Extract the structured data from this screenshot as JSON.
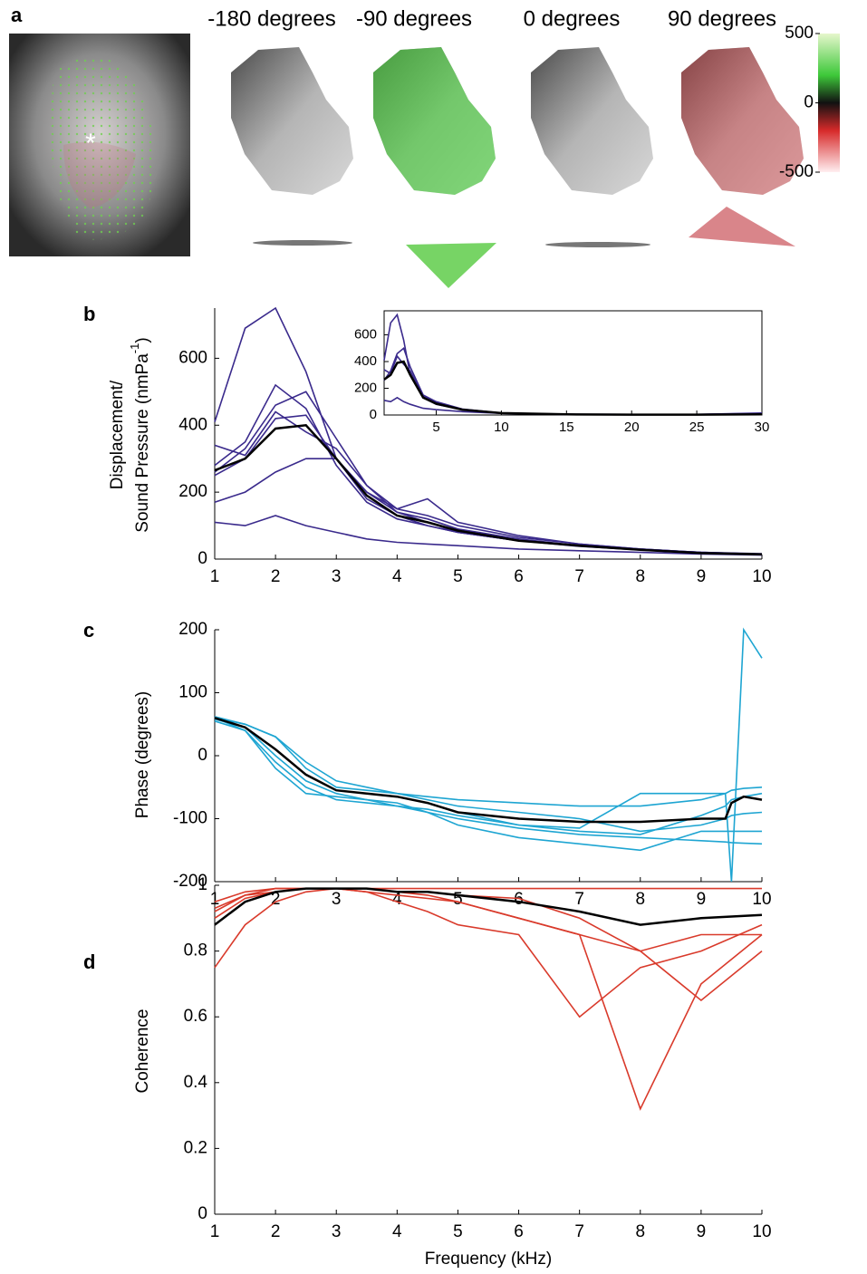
{
  "panel_a": {
    "label": "a",
    "marker": "*",
    "views": [
      "-180 degrees",
      "-90 degrees",
      "0 degrees",
      "90 degrees"
    ],
    "colorbar": {
      "lim": [
        -500,
        500
      ],
      "ticks": [
        500,
        0,
        -500
      ]
    }
  },
  "chart_data": [
    {
      "type": "line",
      "panel_label": "b",
      "y_label": [
        "Displacement/",
        "Sound Pressure (nmPa",
        "-1",
        ")"
      ],
      "x": [
        1,
        1.5,
        2,
        2.5,
        3,
        3.5,
        4,
        4.5,
        5,
        6,
        7,
        8,
        9,
        10
      ],
      "xlim": [
        1,
        10
      ],
      "xticks": [
        1,
        2,
        3,
        4,
        5,
        6,
        7,
        8,
        9,
        10
      ],
      "ylim": [
        0,
        750
      ],
      "yticks": [
        0,
        200,
        400,
        600
      ],
      "series": [
        {
          "color": "#3a2a8c",
          "values": [
            410,
            690,
            750,
            560,
            300,
            180,
            130,
            100,
            80,
            55,
            40,
            30,
            20,
            15
          ]
        },
        {
          "color": "#3a2a8c",
          "values": [
            340,
            310,
            440,
            380,
            330,
            220,
            140,
            120,
            90,
            60,
            40,
            28,
            18,
            14
          ]
        },
        {
          "color": "#3a2a8c",
          "values": [
            260,
            330,
            460,
            500,
            360,
            220,
            150,
            130,
            100,
            65,
            45,
            30,
            20,
            15
          ]
        },
        {
          "color": "#3a2a8c",
          "values": [
            250,
            300,
            420,
            430,
            300,
            200,
            150,
            180,
            110,
            70,
            45,
            30,
            20,
            16
          ]
        },
        {
          "color": "#3a2a8c",
          "values": [
            170,
            200,
            260,
            300,
            300,
            200,
            140,
            110,
            80,
            55,
            40,
            28,
            18,
            13
          ]
        },
        {
          "color": "#3a2a8c",
          "values": [
            110,
            100,
            130,
            100,
            80,
            60,
            50,
            45,
            40,
            30,
            25,
            20,
            15,
            12
          ]
        },
        {
          "color": "#3a2a8c",
          "values": [
            280,
            350,
            520,
            450,
            280,
            170,
            120,
            100,
            80,
            55,
            38,
            27,
            18,
            14
          ]
        },
        {
          "color": "#000000",
          "values": [
            265,
            300,
            390,
            400,
            300,
            190,
            130,
            110,
            85,
            55,
            40,
            28,
            18,
            14
          ]
        }
      ]
    },
    {
      "type": "line",
      "inset": true,
      "x": [
        1,
        1.5,
        2,
        2.5,
        3,
        4,
        5,
        7,
        10,
        15,
        20,
        25,
        30
      ],
      "xlim": [
        1,
        30
      ],
      "xticks": [
        5,
        10,
        15,
        20,
        25,
        30
      ],
      "ylim": [
        0,
        780
      ],
      "yticks": [
        0,
        200,
        400,
        600
      ],
      "series": [
        {
          "color": "#3a2a8c",
          "values": [
            410,
            690,
            750,
            560,
            300,
            130,
            80,
            40,
            15,
            6,
            5,
            5,
            15
          ]
        },
        {
          "color": "#3a2a8c",
          "values": [
            110,
            100,
            130,
            100,
            80,
            50,
            40,
            25,
            12,
            4,
            3,
            3,
            8
          ]
        },
        {
          "color": "#3a2a8c",
          "values": [
            260,
            330,
            460,
            500,
            360,
            150,
            100,
            45,
            15,
            5,
            4,
            4,
            10
          ]
        },
        {
          "color": "#3a2a8c",
          "values": [
            340,
            310,
            440,
            380,
            330,
            140,
            90,
            40,
            14,
            5,
            4,
            4,
            12
          ]
        },
        {
          "color": "#000000",
          "values": [
            265,
            300,
            390,
            400,
            300,
            130,
            85,
            40,
            14,
            5,
            3,
            3,
            5
          ]
        }
      ]
    },
    {
      "type": "line",
      "panel_label": "c",
      "y_label": [
        "Phase (degrees)"
      ],
      "x": [
        1,
        1.5,
        2,
        2.5,
        3,
        3.5,
        4,
        4.5,
        5,
        6,
        7,
        8,
        9,
        9.4,
        9.5,
        9.7,
        10
      ],
      "xlim": [
        1,
        10
      ],
      "xticks": [
        1,
        2,
        3,
        4,
        5,
        6,
        7,
        8,
        9,
        10
      ],
      "ylim": [
        -200,
        200
      ],
      "yticks": [
        -200,
        -100,
        0,
        100,
        200
      ],
      "series": [
        {
          "color": "#1ea5d2",
          "values": [
            60,
            50,
            30,
            -20,
            -50,
            -55,
            -60,
            -70,
            -80,
            -90,
            -100,
            -120,
            -110,
            -100,
            -95,
            -92,
            -90
          ]
        },
        {
          "color": "#1ea5d2",
          "values": [
            58,
            45,
            0,
            -40,
            -60,
            -70,
            -80,
            -90,
            -100,
            -115,
            -125,
            -130,
            -135,
            -137,
            -138,
            -139,
            -140
          ]
        },
        {
          "color": "#1ea5d2",
          "values": [
            62,
            50,
            30,
            -10,
            -40,
            -50,
            -60,
            -65,
            -70,
            -75,
            -80,
            -80,
            -70,
            -60,
            -55,
            -52,
            -50
          ]
        },
        {
          "color": "#1ea5d2",
          "values": [
            60,
            40,
            -10,
            -50,
            -70,
            -75,
            -80,
            -85,
            -95,
            -110,
            -120,
            -125,
            -95,
            -80,
            -70,
            -65,
            -60
          ]
        },
        {
          "color": "#1ea5d2",
          "values": [
            55,
            40,
            -20,
            -60,
            -65,
            -70,
            -75,
            -90,
            -110,
            -130,
            -140,
            -150,
            -120,
            -120,
            -120,
            -120,
            -120
          ]
        },
        {
          "color": "#1ea5d2",
          "values": [
            60,
            45,
            10,
            -30,
            -55,
            -60,
            -65,
            -75,
            -90,
            -110,
            -115,
            -60,
            -60,
            -60,
            -200,
            200,
            155
          ]
        },
        {
          "color": "#000000",
          "values": [
            60,
            45,
            10,
            -30,
            -55,
            -60,
            -65,
            -75,
            -90,
            -100,
            -105,
            -105,
            -100,
            -100,
            -75,
            -65,
            -70
          ]
        }
      ]
    },
    {
      "type": "line",
      "panel_label": "d",
      "y_label": [
        "Coherence"
      ],
      "x_label": "Frequency (kHz)",
      "x": [
        1,
        1.5,
        2,
        2.5,
        3,
        3.5,
        4,
        4.5,
        5,
        6,
        7,
        8,
        9,
        10
      ],
      "xlim": [
        1,
        10
      ],
      "xticks": [
        1,
        2,
        3,
        4,
        5,
        6,
        7,
        8,
        9,
        10
      ],
      "ylim": [
        0,
        1
      ],
      "yticks": [
        0,
        0.2,
        0.4,
        0.6,
        0.8,
        1
      ],
      "series": [
        {
          "color": "#d93a2b",
          "values": [
            0.95,
            0.98,
            0.99,
            0.99,
            0.99,
            0.99,
            0.99,
            0.99,
            0.99,
            0.99,
            0.99,
            0.99,
            0.99,
            0.99
          ]
        },
        {
          "color": "#d93a2b",
          "values": [
            0.75,
            0.88,
            0.95,
            0.98,
            0.99,
            0.99,
            0.98,
            0.97,
            0.95,
            0.9,
            0.85,
            0.8,
            0.85,
            0.85
          ]
        },
        {
          "color": "#d93a2b",
          "values": [
            0.9,
            0.96,
            0.98,
            0.99,
            0.99,
            0.98,
            0.95,
            0.92,
            0.88,
            0.85,
            0.6,
            0.75,
            0.8,
            0.88
          ]
        },
        {
          "color": "#d93a2b",
          "values": [
            0.92,
            0.97,
            0.98,
            0.99,
            0.99,
            0.98,
            0.97,
            0.96,
            0.95,
            0.9,
            0.85,
            0.32,
            0.7,
            0.85
          ]
        },
        {
          "color": "#d93a2b",
          "values": [
            0.93,
            0.97,
            0.99,
            0.99,
            0.99,
            0.99,
            0.98,
            0.98,
            0.97,
            0.96,
            0.9,
            0.8,
            0.65,
            0.8
          ]
        },
        {
          "color": "#000000",
          "values": [
            0.88,
            0.95,
            0.98,
            0.99,
            0.99,
            0.99,
            0.98,
            0.98,
            0.97,
            0.95,
            0.92,
            0.88,
            0.9,
            0.91
          ]
        }
      ]
    }
  ]
}
